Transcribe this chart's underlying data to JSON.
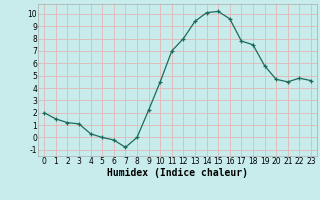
{
  "x": [
    0,
    1,
    2,
    3,
    4,
    5,
    6,
    7,
    8,
    9,
    10,
    11,
    12,
    13,
    14,
    15,
    16,
    17,
    18,
    19,
    20,
    21,
    22,
    23
  ],
  "y": [
    2,
    1.5,
    1.2,
    1.1,
    0.3,
    0.0,
    -0.2,
    -0.8,
    0.0,
    2.2,
    4.5,
    7.0,
    8.0,
    9.4,
    10.1,
    10.2,
    9.6,
    7.8,
    7.5,
    5.8,
    4.7,
    4.5,
    4.8,
    4.6
  ],
  "line_color": "#1a6b5a",
  "marker": "+",
  "marker_color": "#1a6b5a",
  "bg_color": "#c8ecec",
  "grid_color": "#e0b8b8",
  "xlabel": "Humidex (Indice chaleur)",
  "xlim": [
    -0.5,
    23.5
  ],
  "ylim": [
    -1.5,
    10.8
  ],
  "xticks": [
    0,
    1,
    2,
    3,
    4,
    5,
    6,
    7,
    8,
    9,
    10,
    11,
    12,
    13,
    14,
    15,
    16,
    17,
    18,
    19,
    20,
    21,
    22,
    23
  ],
  "yticks": [
    -1,
    0,
    1,
    2,
    3,
    4,
    5,
    6,
    7,
    8,
    9,
    10
  ],
  "tick_fontsize": 5.5,
  "xlabel_fontsize": 7,
  "spine_color": "#aaaaaa"
}
